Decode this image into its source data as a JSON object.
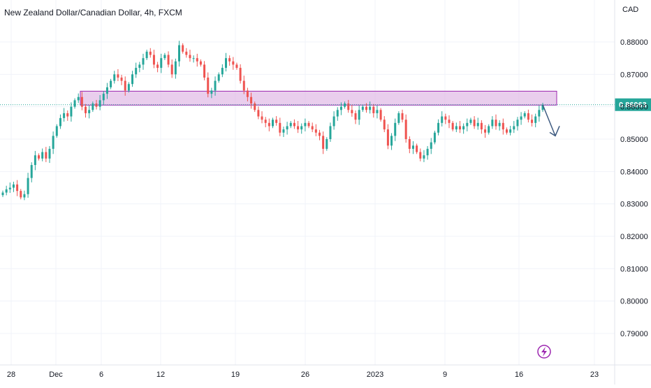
{
  "header": {
    "title": "New Zealand Dollar/Canadian Dollar, 4h, FXCM",
    "currency": "CAD"
  },
  "colors": {
    "up": "#26a69a",
    "down": "#ef5350",
    "zone_fill": "#e1bee7",
    "zone_stroke": "#9c27b0",
    "price_line": "#26a69a",
    "arrow": "#3d5a80",
    "grid": "#f0f3fa"
  },
  "price_label": "0.86063",
  "icons": {
    "bottom": "lightning-icon"
  },
  "chart_data": {
    "type": "candlestick",
    "title": "New Zealand Dollar/Canadian Dollar, 4h, FXCM",
    "ylabel": "CAD",
    "ylim": [
      0.7815,
      0.8915
    ],
    "y_ticks": [
      "0.88000",
      "0.87000",
      "0.86000",
      "0.85000",
      "0.84000",
      "0.83000",
      "0.82000",
      "0.81000",
      "0.80000",
      "0.79000"
    ],
    "x_ticks": [
      "28",
      "Dec",
      "6",
      "12",
      "19",
      "26",
      "2023",
      "9",
      "16",
      "23"
    ],
    "grid": true,
    "last_price": 0.86063,
    "resistance_zone": [
      0.8605,
      0.8648
    ],
    "closes": [
      0.8335,
      0.8345,
      0.835,
      0.836,
      0.834,
      0.832,
      0.833,
      0.838,
      0.842,
      0.845,
      0.844,
      0.846,
      0.844,
      0.847,
      0.851,
      0.854,
      0.8565,
      0.858,
      0.857,
      0.86,
      0.862,
      0.863,
      0.86,
      0.858,
      0.859,
      0.861,
      0.86,
      0.862,
      0.864,
      0.866,
      0.868,
      0.87,
      0.869,
      0.868,
      0.865,
      0.867,
      0.87,
      0.872,
      0.873,
      0.875,
      0.877,
      0.876,
      0.873,
      0.872,
      0.875,
      0.876,
      0.873,
      0.87,
      0.874,
      0.879,
      0.877,
      0.876,
      0.875,
      0.875,
      0.874,
      0.873,
      0.869,
      0.864,
      0.865,
      0.868,
      0.87,
      0.872,
      0.875,
      0.874,
      0.873,
      0.872,
      0.868,
      0.865,
      0.863,
      0.861,
      0.859,
      0.857,
      0.856,
      0.855,
      0.854,
      0.856,
      0.855,
      0.852,
      0.853,
      0.854,
      0.855,
      0.854,
      0.853,
      0.854,
      0.855,
      0.854,
      0.853,
      0.852,
      0.851,
      0.847,
      0.85,
      0.854,
      0.857,
      0.859,
      0.86,
      0.861,
      0.859,
      0.858,
      0.856,
      0.859,
      0.86,
      0.859,
      0.86,
      0.858,
      0.859,
      0.856,
      0.853,
      0.848,
      0.851,
      0.855,
      0.858,
      0.856,
      0.85,
      0.847,
      0.848,
      0.846,
      0.844,
      0.845,
      0.847,
      0.849,
      0.852,
      0.855,
      0.857,
      0.856,
      0.855,
      0.853,
      0.854,
      0.853,
      0.854,
      0.855,
      0.856,
      0.854,
      0.855,
      0.853,
      0.852,
      0.854,
      0.856,
      0.854,
      0.855,
      0.853,
      0.852,
      0.853,
      0.854,
      0.856,
      0.857,
      0.858,
      0.856,
      0.855,
      0.857,
      0.859,
      0.8606
    ],
    "projection": {
      "from": 0.8606,
      "to": 0.851,
      "direction": "down"
    }
  }
}
